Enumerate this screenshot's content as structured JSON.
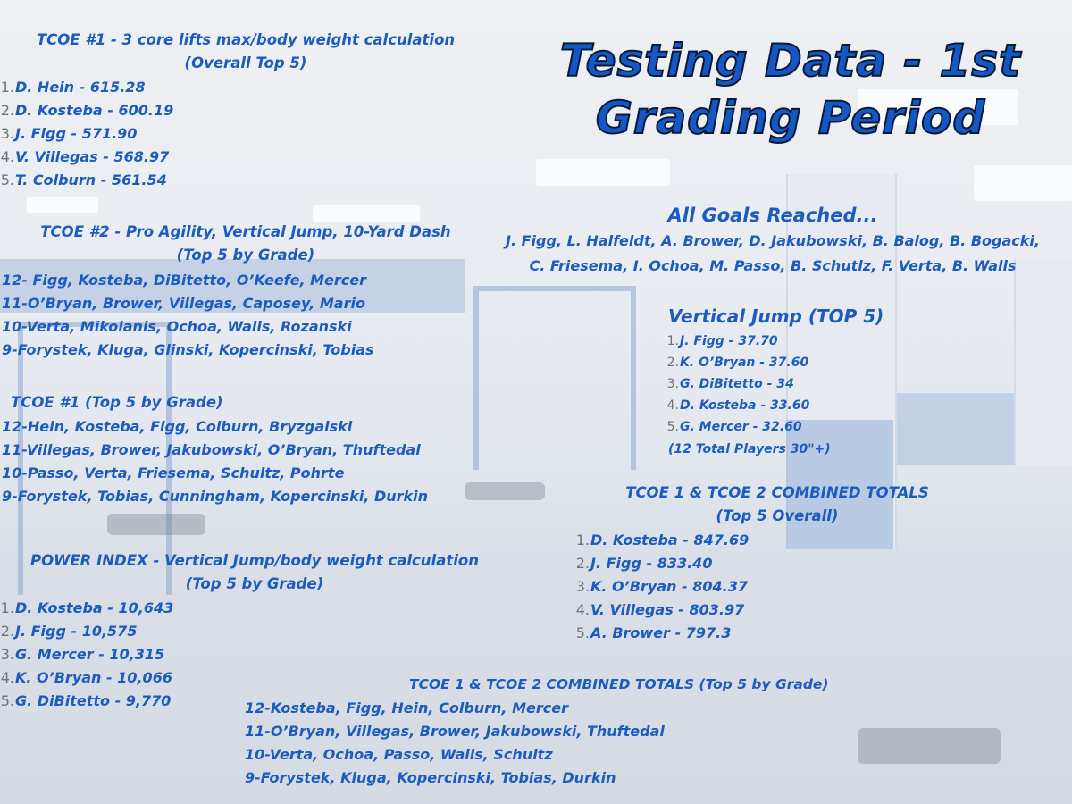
{
  "title_line1": "Testing Data - 1st",
  "title_line2": "Grading Period",
  "tcoe1_overall": {
    "heading": "TCOE #1 - 3 core lifts max/body weight calculation",
    "subheading": "(Overall Top 5)",
    "items": [
      "D. Hein - 615.28",
      "D. Kosteba - 600.19",
      "J. Figg - 571.90",
      "V. Villegas - 568.97",
      "T. Colburn - 561.54"
    ]
  },
  "tcoe2_grade": {
    "heading": "TCOE #2 - Pro Agility, Vertical Jump, 10-Yard Dash",
    "subheading": "(Top 5 by Grade)",
    "rows": [
      "12- Figg, Kosteba, DiBitetto, O’Keefe, Mercer",
      "11-O’Bryan, Brower, Villegas, Caposey, Mario",
      "10-Verta, Mikolanis, Ochoa, Walls, Rozanski",
      "9-Forystek, Kluga, Glinski, Kopercinski, Tobias"
    ]
  },
  "tcoe1_grade": {
    "heading": "TCOE #1 (Top 5 by Grade)",
    "rows": [
      "12-Hein, Kosteba, Figg, Colburn, Bryzgalski",
      "11-Villegas, Brower, Jakubowski, O’Bryan, Thuftedal",
      "10-Passo, Verta, Friesema, Schultz, Pohrte",
      "9-Forystek, Tobias, Cunningham, Kopercinski, Durkin"
    ]
  },
  "power_index": {
    "heading": "POWER INDEX - Vertical Jump/body weight calculation",
    "subheading": "(Top 5 by Grade)",
    "items": [
      "D. Kosteba - 10,643",
      "J. Figg - 10,575",
      "G. Mercer - 10,315",
      "K. O’Bryan - 10,066",
      "G. DiBitetto - 9,770"
    ]
  },
  "goals": {
    "heading": "All Goals Reached...",
    "line1": "J. Figg, L. Halfeldt, A. Brower, D. Jakubowski, B. Balog, B. Bogacki,",
    "line2": "C. Friesema, I. Ochoa, M. Passo, B. Schutlz, F. Verta, B. Walls"
  },
  "vertical_jump": {
    "heading": "Vertical Jump (TOP 5)",
    "items": [
      "J. Figg - 37.70",
      "K. O’Bryan - 37.60",
      "G. DiBitetto - 34",
      "D. Kosteba - 33.60",
      "G. Mercer - 32.60"
    ],
    "note": "(12 Total Players 30\"+)"
  },
  "combined_overall": {
    "heading": "TCOE 1 & TCOE 2 COMBINED TOTALS",
    "subheading": "(Top 5 Overall)",
    "items": [
      "D. Kosteba - 847.69",
      "J. Figg - 833.40",
      "K. O’Bryan - 804.37",
      "V. Villegas - 803.97",
      "A. Brower - 797.3"
    ]
  },
  "combined_grade": {
    "heading": "TCOE 1 & TCOE 2 COMBINED TOTALS (Top 5 by Grade)",
    "rows": [
      "12-Kosteba, Figg, Hein, Colburn, Mercer",
      "11-O’Bryan, Villegas, Brower, Jakubowski, Thuftedal",
      "10-Verta, Ochoa, Passo, Walls, Schultz",
      "9-Forystek, Kluga, Kopercinski, Tobias, Durkin"
    ]
  },
  "numbers": [
    "1.",
    "2.",
    "3.",
    "4.",
    "5."
  ]
}
